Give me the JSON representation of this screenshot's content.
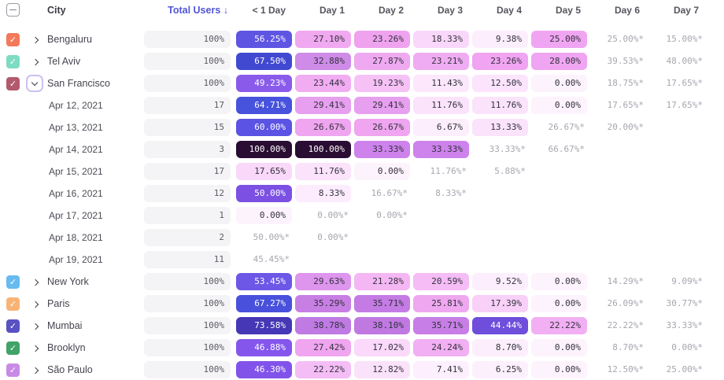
{
  "header": {
    "city_label": "City",
    "total_label": "Total Users ↓",
    "total_color": "#5156D6",
    "day_columns": [
      "< 1 Day",
      "Day 1",
      "Day 2",
      "Day 3",
      "Day 4",
      "Day 5",
      "Day 6",
      "Day 7"
    ],
    "select_all_state": "indeterminate"
  },
  "table": {
    "rows": [
      {
        "type": "city",
        "label": "Bengaluru",
        "checkbox_color": "#F4795B",
        "checked": true,
        "expanded": false,
        "total": "100%",
        "cells": [
          {
            "t": "56.25%",
            "bg": "#5F55E3",
            "fg": "#FFFFFF"
          },
          {
            "t": "27.10%",
            "bg": "#F0A8F0"
          },
          {
            "t": "23.26%",
            "bg": "#EFA3EF"
          },
          {
            "t": "18.33%",
            "bg": "#F9D7FA"
          },
          {
            "t": "9.38%",
            "bg": "#FDEEFD"
          },
          {
            "t": "25.00%",
            "bg": "#F0A5F2"
          },
          {
            "t": "25.00%*",
            "muted": true
          },
          {
            "t": "15.00%*",
            "muted": true
          }
        ]
      },
      {
        "type": "city",
        "label": "Tel Aviv",
        "checkbox_color": "#7EDCC3",
        "checked": true,
        "expanded": false,
        "total": "100%",
        "cells": [
          {
            "t": "67.50%",
            "bg": "#4149D1",
            "fg": "#FFFFFF"
          },
          {
            "t": "32.88%",
            "bg": "#CE8BE8"
          },
          {
            "t": "27.87%",
            "bg": "#EFA9F1"
          },
          {
            "t": "23.21%",
            "bg": "#F0ACF2"
          },
          {
            "t": "23.26%",
            "bg": "#F0A4F1"
          },
          {
            "t": "28.00%",
            "bg": "#F0A5F2"
          },
          {
            "t": "39.53%*",
            "muted": true
          },
          {
            "t": "48.00%*",
            "muted": true
          }
        ]
      },
      {
        "type": "city",
        "label": "San Francisco",
        "checkbox_color": "#B25A6D",
        "checked": true,
        "expanded": true,
        "total": "100%",
        "cells": [
          {
            "t": "49.23%",
            "bg": "#8A5BEB",
            "fg": "#FFFFFF"
          },
          {
            "t": "23.44%",
            "bg": "#F1ACF2"
          },
          {
            "t": "19.23%",
            "bg": "#F6C2F6"
          },
          {
            "t": "11.43%",
            "bg": "#FCE7FC"
          },
          {
            "t": "12.50%",
            "bg": "#FBE4FC"
          },
          {
            "t": "0.00%",
            "bg": "#FDF3FD"
          },
          {
            "t": "18.75%*",
            "muted": true
          },
          {
            "t": "17.65%*",
            "muted": true
          }
        ]
      },
      {
        "type": "date",
        "label": "Apr 12, 2021",
        "total": "17",
        "cells": [
          {
            "t": "64.71%",
            "bg": "#4753DC",
            "fg": "#FFFFFF"
          },
          {
            "t": "29.41%",
            "bg": "#E79FF0"
          },
          {
            "t": "29.41%",
            "bg": "#E79FF0"
          },
          {
            "t": "11.76%",
            "bg": "#FBE3FC"
          },
          {
            "t": "11.76%",
            "bg": "#FBE3FC"
          },
          {
            "t": "0.00%",
            "bg": "#FDF3FD"
          },
          {
            "t": "17.65%*",
            "muted": true
          },
          {
            "t": "17.65%*",
            "muted": true
          }
        ]
      },
      {
        "type": "date",
        "label": "Apr 13, 2021",
        "total": "15",
        "cells": [
          {
            "t": "60.00%",
            "bg": "#5B53E3",
            "fg": "#FFFFFF"
          },
          {
            "t": "26.67%",
            "bg": "#EFA5EF"
          },
          {
            "t": "26.67%",
            "bg": "#EFA5EF"
          },
          {
            "t": "6.67%",
            "bg": "#FDEEFD"
          },
          {
            "t": "13.33%",
            "bg": "#FBE3FB"
          },
          {
            "t": "26.67%*",
            "muted": true
          },
          {
            "t": "20.00%*",
            "muted": true
          },
          null
        ]
      },
      {
        "type": "date",
        "label": "Apr 14, 2021",
        "total": "3",
        "cells": [
          {
            "t": "100.00%",
            "bg": "#2A0D33",
            "fg": "#FFFFFF"
          },
          {
            "t": "100.00%",
            "bg": "#2A0D33",
            "fg": "#FFFFFF"
          },
          {
            "t": "33.33%",
            "bg": "#CE82EC"
          },
          {
            "t": "33.33%",
            "bg": "#CE82EC"
          },
          {
            "t": "33.33%*",
            "muted": true
          },
          {
            "t": "66.67%*",
            "muted": true
          },
          null,
          null
        ]
      },
      {
        "type": "date",
        "label": "Apr 15, 2021",
        "total": "17",
        "cells": [
          {
            "t": "17.65%",
            "bg": "#F9D8F9"
          },
          {
            "t": "11.76%",
            "bg": "#FBE3FC"
          },
          {
            "t": "0.00%",
            "bg": "#FDF3FD"
          },
          {
            "t": "11.76%*",
            "muted": true
          },
          {
            "t": "5.88%*",
            "muted": true
          },
          null,
          null,
          null
        ]
      },
      {
        "type": "date",
        "label": "Apr 16, 2021",
        "total": "12",
        "cells": [
          {
            "t": "50.00%",
            "bg": "#7B50E3",
            "fg": "#FFFFFF"
          },
          {
            "t": "8.33%",
            "bg": "#FDECFD"
          },
          {
            "t": "16.67%*",
            "muted": true
          },
          {
            "t": "8.33%*",
            "muted": true
          },
          null,
          null,
          null,
          null
        ]
      },
      {
        "type": "date",
        "label": "Apr 17, 2021",
        "total": "1",
        "cells": [
          {
            "t": "0.00%",
            "bg": "#FDF3FD"
          },
          {
            "t": "0.00%*",
            "muted": true
          },
          {
            "t": "0.00%*",
            "muted": true
          },
          null,
          null,
          null,
          null,
          null
        ]
      },
      {
        "type": "date",
        "label": "Apr 18, 2021",
        "total": "2",
        "cells": [
          {
            "t": "50.00%*",
            "muted": true
          },
          {
            "t": "0.00%*",
            "muted": true
          },
          null,
          null,
          null,
          null,
          null,
          null
        ]
      },
      {
        "type": "date",
        "label": "Apr 19, 2021",
        "total": "11",
        "cells": [
          {
            "t": "45.45%*",
            "muted": true
          },
          null,
          null,
          null,
          null,
          null,
          null,
          null
        ]
      },
      {
        "type": "city",
        "label": "New York",
        "checkbox_color": "#67BBEF",
        "checked": true,
        "expanded": false,
        "total": "100%",
        "cells": [
          {
            "t": "53.45%",
            "bg": "#6C57E6",
            "fg": "#FFFFFF"
          },
          {
            "t": "29.63%",
            "bg": "#DD95EE"
          },
          {
            "t": "21.28%",
            "bg": "#F4B7F4"
          },
          {
            "t": "20.59%",
            "bg": "#F5BCF5"
          },
          {
            "t": "9.52%",
            "bg": "#FDEEFD"
          },
          {
            "t": "0.00%",
            "bg": "#FDF3FD"
          },
          {
            "t": "14.29%*",
            "muted": true
          },
          {
            "t": "9.09%*",
            "muted": true
          }
        ]
      },
      {
        "type": "city",
        "label": "Paris",
        "checkbox_color": "#F8B477",
        "checked": true,
        "expanded": false,
        "total": "100%",
        "cells": [
          {
            "t": "67.27%",
            "bg": "#4850DC",
            "fg": "#FFFFFF"
          },
          {
            "t": "35.29%",
            "bg": "#C87FE4"
          },
          {
            "t": "35.71%",
            "bg": "#C47BE4"
          },
          {
            "t": "25.81%",
            "bg": "#EFA8F0"
          },
          {
            "t": "17.39%",
            "bg": "#F8D0F8"
          },
          {
            "t": "0.00%",
            "bg": "#FDF3FD"
          },
          {
            "t": "26.09%*",
            "muted": true
          },
          {
            "t": "30.77%*",
            "muted": true
          }
        ]
      },
      {
        "type": "city",
        "label": "Mumbai",
        "checkbox_color": "#5A51C2",
        "checked": true,
        "expanded": false,
        "total": "100%",
        "cells": [
          {
            "t": "73.58%",
            "bg": "#4537B5",
            "fg": "#FFFFFF"
          },
          {
            "t": "38.78%",
            "bg": "#BF7AE4"
          },
          {
            "t": "38.10%",
            "bg": "#C179E2"
          },
          {
            "t": "35.71%",
            "bg": "#C77EE6"
          },
          {
            "t": "44.44%",
            "bg": "#6E4EDB",
            "fg": "#FFFFFF"
          },
          {
            "t": "22.22%",
            "bg": "#F2AFF3"
          },
          {
            "t": "22.22%*",
            "muted": true
          },
          {
            "t": "33.33%*",
            "muted": true
          }
        ]
      },
      {
        "type": "city",
        "label": "Brooklyn",
        "checkbox_color": "#41A368",
        "checked": true,
        "expanded": false,
        "total": "100%",
        "cells": [
          {
            "t": "46.88%",
            "bg": "#8456EC",
            "fg": "#FFFFFF"
          },
          {
            "t": "27.42%",
            "bg": "#EFA5F0"
          },
          {
            "t": "17.02%",
            "bg": "#FAD9FA"
          },
          {
            "t": "24.24%",
            "bg": "#F2AFF3"
          },
          {
            "t": "8.70%",
            "bg": "#FDEEFD"
          },
          {
            "t": "0.00%",
            "bg": "#FDF3FD"
          },
          {
            "t": "8.70%*",
            "muted": true
          },
          {
            "t": "0.00%*",
            "muted": true
          }
        ]
      },
      {
        "type": "city",
        "label": "São Paulo",
        "checkbox_color": "#C88BE5",
        "checked": true,
        "expanded": false,
        "total": "100%",
        "cells": [
          {
            "t": "46.30%",
            "bg": "#8153EA",
            "fg": "#FFFFFF"
          },
          {
            "t": "22.22%",
            "bg": "#F5BDF5"
          },
          {
            "t": "12.82%",
            "bg": "#FBE2FB"
          },
          {
            "t": "7.41%",
            "bg": "#FDEFFD"
          },
          {
            "t": "6.25%",
            "bg": "#FDF0FD"
          },
          {
            "t": "0.00%",
            "bg": "#FDF3FD"
          },
          {
            "t": "12.50%*",
            "muted": true
          },
          {
            "t": "25.00%*",
            "muted": true
          }
        ]
      }
    ]
  }
}
